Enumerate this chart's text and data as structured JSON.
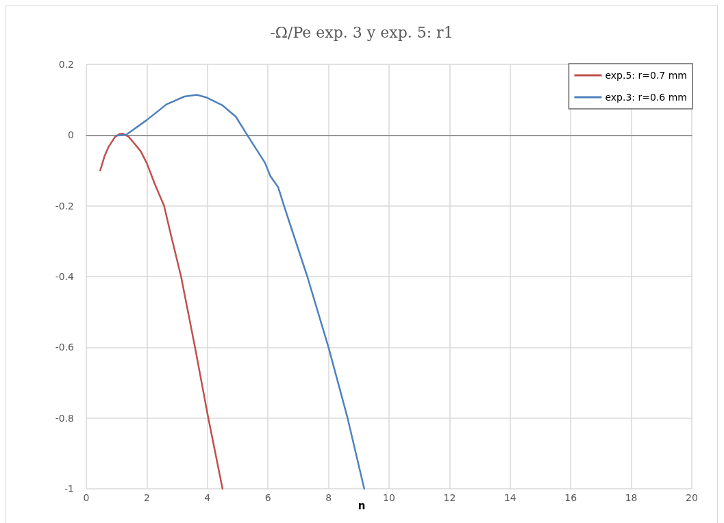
{
  "chart_data": {
    "type": "line",
    "title": "-Ω/Pe exp. 3 y exp. 5: r1",
    "xlabel": "n",
    "series": [
      {
        "name": "exp.5: r=0.7 mm",
        "color": "#c0504d",
        "x": [
          0.46,
          0.6,
          0.73,
          0.95,
          1.1,
          1.21,
          1.4,
          1.6,
          1.8,
          2.0,
          2.28,
          2.57,
          2.76,
          3.13,
          3.59,
          4.03,
          4.5
        ],
        "values": [
          -0.1,
          -0.06,
          -0.034,
          -0.005,
          0.003,
          0.004,
          -0.005,
          -0.025,
          -0.046,
          -0.08,
          -0.142,
          -0.2,
          -0.27,
          -0.4,
          -0.6,
          -0.8,
          -1
        ]
      },
      {
        "name": "exp.3: r=0.6 mm",
        "color": "#4f81bd",
        "x": [
          0.99,
          1.32,
          1.99,
          2.65,
          3.24,
          3.65,
          3.98,
          4.5,
          4.94,
          5.31,
          5.9,
          6.08,
          6.34,
          6.53,
          6.78,
          7.3,
          8.0,
          8.63,
          9.18
        ],
        "values": [
          -0.002,
          0.001,
          0.042,
          0.087,
          0.109,
          0.114,
          0.106,
          0.084,
          0.052,
          0.001,
          -0.078,
          -0.116,
          -0.148,
          -0.2,
          -0.265,
          -0.4,
          -0.6,
          -0.8,
          -1
        ]
      }
    ],
    "xlim": [
      0,
      20
    ],
    "xticks": [
      0,
      2,
      4,
      6,
      8,
      10,
      12,
      14,
      16,
      18,
      20
    ],
    "ylim": [
      -1,
      0.2
    ],
    "yticks": [
      -1,
      -0.8,
      -0.6,
      -0.4,
      -0.2,
      0,
      0.2
    ],
    "grid": true,
    "legend": "top right",
    "marker": "none",
    "line_style": "solid"
  }
}
